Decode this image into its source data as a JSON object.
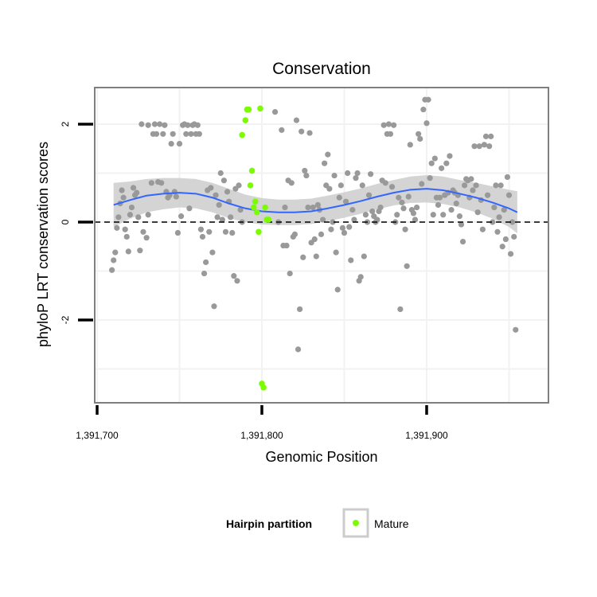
{
  "chart_data": {
    "type": "scatter",
    "title": "Conservation",
    "xlabel": "Genomic Position",
    "ylabel": "phyloP LRT conservation scores",
    "x_ticks": [
      {
        "value": 1391700,
        "label": "1,391,700"
      },
      {
        "value": 1391800,
        "label": "1,391,800"
      },
      {
        "value": 1391900,
        "label": "1,391,900"
      }
    ],
    "y_ticks": [
      {
        "value": -2,
        "label": "-2"
      },
      {
        "value": 0,
        "label": "0"
      },
      {
        "value": 2,
        "label": "2"
      }
    ],
    "xlim": [
      1391700,
      1391970
    ],
    "ylim": [
      -3.7,
      2.7
    ],
    "grid": true,
    "reference_line": {
      "y": 0,
      "style": "dashed",
      "color": "#000000"
    },
    "colors": {
      "background_points": "#999999",
      "mature_points": "#7CFC00",
      "smooth_line": "#3366FF",
      "ribbon": "#CCCCCC",
      "panel_border": "#7F7F7F",
      "grid": "#F2F2F2"
    },
    "legend": {
      "title": "Hairpin partition",
      "position": "bottom",
      "entries": [
        {
          "label": "Mature",
          "color": "#7CFC00"
        }
      ]
    },
    "series": [
      {
        "values": [
          [
            1391709,
            -0.98
          ],
          [
            1391710,
            -0.78
          ],
          [
            1391711,
            -0.62
          ],
          [
            1391712,
            -0.12
          ],
          [
            1391713,
            0.1
          ],
          [
            1391714,
            0.38
          ],
          [
            1391715,
            0.65
          ],
          [
            1391716,
            0.5
          ],
          [
            1391717,
            -0.15
          ],
          [
            1391718,
            -0.3
          ],
          [
            1391719,
            -0.6
          ],
          [
            1391720,
            0.15
          ],
          [
            1391721,
            0.3
          ],
          [
            1391722,
            0.7
          ],
          [
            1391723,
            0.55
          ],
          [
            1391724,
            0.6
          ],
          [
            1391725,
            0.1
          ],
          [
            1391726,
            -0.58
          ],
          [
            1391727,
            2.0
          ],
          [
            1391728,
            -0.2
          ],
          [
            1391730,
            -0.32
          ],
          [
            1391731,
            0.15
          ],
          [
            1391731,
            1.98
          ],
          [
            1391733,
            0.8
          ],
          [
            1391734,
            1.8
          ],
          [
            1391735,
            2.0
          ],
          [
            1391736,
            1.8
          ],
          [
            1391737,
            0.82
          ],
          [
            1391738,
            2.0
          ],
          [
            1391739,
            0.8
          ],
          [
            1391740,
            1.8
          ],
          [
            1391741,
            1.98
          ],
          [
            1391742,
            0.62
          ],
          [
            1391743,
            0.5
          ],
          [
            1391744,
            0.55
          ],
          [
            1391745,
            1.6
          ],
          [
            1391746,
            1.8
          ],
          [
            1391747,
            0.62
          ],
          [
            1391748,
            0.52
          ],
          [
            1391749,
            -0.22
          ],
          [
            1391750,
            1.6
          ],
          [
            1391751,
            0.12
          ],
          [
            1391752,
            1.98
          ],
          [
            1391753,
            2.0
          ],
          [
            1391754,
            1.8
          ],
          [
            1391755,
            1.98
          ],
          [
            1391756,
            0.28
          ],
          [
            1391757,
            1.8
          ],
          [
            1391758,
            1.98
          ],
          [
            1391759,
            2.0
          ],
          [
            1391760,
            1.8
          ],
          [
            1391761,
            1.98
          ],
          [
            1391762,
            1.8
          ],
          [
            1391763,
            -0.15
          ],
          [
            1391764,
            -0.3
          ],
          [
            1391765,
            -1.05
          ],
          [
            1391766,
            -0.82
          ],
          [
            1391767,
            0.65
          ],
          [
            1391768,
            -0.2
          ],
          [
            1391769,
            0.7
          ],
          [
            1391770,
            -0.62
          ],
          [
            1391771,
            -1.72
          ],
          [
            1391772,
            0.55
          ],
          [
            1391773,
            0.1
          ],
          [
            1391774,
            0.35
          ],
          [
            1391775,
            1.0
          ],
          [
            1391776,
            0.05
          ],
          [
            1391777,
            0.85
          ],
          [
            1391778,
            -0.2
          ],
          [
            1391779,
            0.62
          ],
          [
            1391780,
            0.42
          ],
          [
            1391781,
            0.1
          ],
          [
            1391782,
            -0.22
          ],
          [
            1391783,
            -1.1
          ],
          [
            1391784,
            0.68
          ],
          [
            1391785,
            -1.2
          ],
          [
            1391786,
            0.75
          ],
          [
            1391787,
            0.25
          ],
          [
            1391788,
            0.0
          ],
          [
            1391808,
            2.25
          ],
          [
            1391810,
            0.0
          ],
          [
            1391812,
            1.88
          ],
          [
            1391813,
            -0.48
          ],
          [
            1391814,
            0.3
          ],
          [
            1391815,
            -0.48
          ],
          [
            1391816,
            0.85
          ],
          [
            1391817,
            -1.05
          ],
          [
            1391818,
            0.8
          ],
          [
            1391819,
            -0.3
          ],
          [
            1391820,
            -0.25
          ],
          [
            1391821,
            2.08
          ],
          [
            1391822,
            -2.6
          ],
          [
            1391823,
            -1.78
          ],
          [
            1391824,
            1.85
          ],
          [
            1391825,
            -0.72
          ],
          [
            1391826,
            1.05
          ],
          [
            1391827,
            0.95
          ],
          [
            1391828,
            0.3
          ],
          [
            1391829,
            1.82
          ],
          [
            1391830,
            -0.42
          ],
          [
            1391831,
            0.3
          ],
          [
            1391832,
            -0.35
          ],
          [
            1391833,
            -0.7
          ],
          [
            1391834,
            0.35
          ],
          [
            1391835,
            0.25
          ],
          [
            1391836,
            -0.25
          ],
          [
            1391837,
            0.05
          ],
          [
            1391838,
            1.2
          ],
          [
            1391839,
            0.75
          ],
          [
            1391840,
            1.38
          ],
          [
            1391841,
            0.68
          ],
          [
            1391842,
            -0.15
          ],
          [
            1391843,
            0.0
          ],
          [
            1391844,
            0.95
          ],
          [
            1391845,
            -0.62
          ],
          [
            1391846,
            -1.38
          ],
          [
            1391847,
            0.5
          ],
          [
            1391848,
            0.75
          ],
          [
            1391849,
            -0.12
          ],
          [
            1391850,
            -0.22
          ],
          [
            1391851,
            0.42
          ],
          [
            1391852,
            1.0
          ],
          [
            1391853,
            -0.1
          ],
          [
            1391854,
            -0.78
          ],
          [
            1391855,
            0.25
          ],
          [
            1391856,
            0.05
          ],
          [
            1391857,
            0.9
          ],
          [
            1391858,
            1.0
          ],
          [
            1391859,
            -1.2
          ],
          [
            1391860,
            -1.12
          ],
          [
            1391861,
            0.75
          ],
          [
            1391862,
            -0.7
          ],
          [
            1391863,
            0.15
          ],
          [
            1391864,
            0.0
          ],
          [
            1391865,
            0.55
          ],
          [
            1391866,
            0.98
          ],
          [
            1391867,
            0.22
          ],
          [
            1391868,
            0.12
          ],
          [
            1391869,
            0.0
          ],
          [
            1391870,
            0.05
          ],
          [
            1391871,
            0.22
          ],
          [
            1391872,
            0.3
          ],
          [
            1391873,
            0.85
          ],
          [
            1391874,
            1.98
          ],
          [
            1391875,
            0.8
          ],
          [
            1391876,
            1.8
          ],
          [
            1391877,
            2.0
          ],
          [
            1391878,
            1.8
          ],
          [
            1391879,
            0.72
          ],
          [
            1391880,
            1.98
          ],
          [
            1391881,
            0.0
          ],
          [
            1391882,
            0.15
          ],
          [
            1391883,
            0.5
          ],
          [
            1391884,
            -1.78
          ],
          [
            1391885,
            0.4
          ],
          [
            1391886,
            0.28
          ],
          [
            1391887,
            -0.15
          ],
          [
            1391888,
            -0.9
          ],
          [
            1391889,
            0.52
          ],
          [
            1391890,
            1.58
          ],
          [
            1391891,
            0.25
          ],
          [
            1391892,
            0.18
          ],
          [
            1391893,
            0.05
          ],
          [
            1391894,
            0.3
          ],
          [
            1391895,
            1.8
          ],
          [
            1391896,
            1.7
          ],
          [
            1391897,
            0.78
          ],
          [
            1391898,
            2.3
          ],
          [
            1391899,
            2.5
          ],
          [
            1391900,
            2.02
          ],
          [
            1391901,
            2.5
          ],
          [
            1391902,
            0.9
          ],
          [
            1391903,
            1.2
          ],
          [
            1391904,
            0.15
          ],
          [
            1391905,
            1.3
          ],
          [
            1391906,
            0.5
          ],
          [
            1391907,
            0.35
          ],
          [
            1391908,
            0.5
          ],
          [
            1391909,
            1.1
          ],
          [
            1391910,
            0.15
          ],
          [
            1391911,
            0.55
          ],
          [
            1391912,
            1.2
          ],
          [
            1391913,
            0.6
          ],
          [
            1391914,
            1.35
          ],
          [
            1391915,
            0.25
          ],
          [
            1391916,
            0.65
          ],
          [
            1391917,
            0.6
          ],
          [
            1391918,
            0.38
          ],
          [
            1391919,
            0.55
          ],
          [
            1391920,
            0.12
          ],
          [
            1391921,
            -0.05
          ],
          [
            1391922,
            -0.4
          ],
          [
            1391923,
            0.75
          ],
          [
            1391924,
            0.88
          ],
          [
            1391925,
            0.85
          ],
          [
            1391926,
            0.5
          ],
          [
            1391927,
            0.88
          ],
          [
            1391928,
            0.65
          ],
          [
            1391929,
            1.55
          ],
          [
            1391930,
            0.75
          ],
          [
            1391931,
            0.2
          ],
          [
            1391932,
            1.55
          ],
          [
            1391933,
            0.45
          ],
          [
            1391934,
            -0.15
          ],
          [
            1391935,
            1.58
          ],
          [
            1391936,
            1.75
          ],
          [
            1391937,
            0.55
          ],
          [
            1391938,
            1.55
          ],
          [
            1391939,
            1.75
          ],
          [
            1391940,
            0.0
          ],
          [
            1391941,
            0.3
          ],
          [
            1391942,
            0.75
          ],
          [
            1391943,
            -0.2
          ],
          [
            1391944,
            0.1
          ],
          [
            1391945,
            0.75
          ],
          [
            1391946,
            -0.5
          ],
          [
            1391947,
            0.25
          ],
          [
            1391948,
            -0.35
          ],
          [
            1391949,
            0.92
          ],
          [
            1391950,
            0.55
          ],
          [
            1391951,
            -0.65
          ],
          [
            1391952,
            0.0
          ],
          [
            1391953,
            -0.3
          ],
          [
            1391954,
            -2.2
          ]
        ]
      },
      {
        "name": "Mature",
        "values": [
          [
            1391788,
            1.78
          ],
          [
            1391790,
            2.08
          ],
          [
            1391791,
            2.3
          ],
          [
            1391792,
            2.3
          ],
          [
            1391793,
            0.75
          ],
          [
            1391794,
            1.05
          ],
          [
            1391795,
            0.3
          ],
          [
            1391796,
            0.42
          ],
          [
            1391797,
            0.2
          ],
          [
            1391798,
            -0.2
          ],
          [
            1391799,
            2.32
          ],
          [
            1391800,
            -3.3
          ],
          [
            1391801,
            -3.38
          ],
          [
            1391802,
            0.3
          ],
          [
            1391803,
            0.05
          ],
          [
            1391804,
            0.05
          ]
        ]
      }
    ],
    "smooth": {
      "values": [
        [
          1391710,
          0.35
        ],
        [
          1391720,
          0.45
        ],
        [
          1391730,
          0.54
        ],
        [
          1391740,
          0.58
        ],
        [
          1391750,
          0.6
        ],
        [
          1391760,
          0.58
        ],
        [
          1391770,
          0.5
        ],
        [
          1391780,
          0.38
        ],
        [
          1391790,
          0.28
        ],
        [
          1391800,
          0.22
        ],
        [
          1391810,
          0.2
        ],
        [
          1391820,
          0.2
        ],
        [
          1391830,
          0.22
        ],
        [
          1391840,
          0.28
        ],
        [
          1391850,
          0.35
        ],
        [
          1391860,
          0.43
        ],
        [
          1391870,
          0.52
        ],
        [
          1391880,
          0.6
        ],
        [
          1391890,
          0.66
        ],
        [
          1391900,
          0.68
        ],
        [
          1391910,
          0.65
        ],
        [
          1391920,
          0.58
        ],
        [
          1391930,
          0.5
        ],
        [
          1391940,
          0.4
        ],
        [
          1391950,
          0.28
        ],
        [
          1391955,
          0.2
        ]
      ],
      "ribbon_halfwidth": [
        0.45,
        0.38,
        0.34,
        0.32,
        0.3,
        0.3,
        0.3,
        0.3,
        0.28,
        0.27,
        0.26,
        0.26,
        0.26,
        0.26,
        0.26,
        0.26,
        0.26,
        0.26,
        0.27,
        0.28,
        0.28,
        0.28,
        0.3,
        0.33,
        0.38,
        0.43
      ]
    }
  }
}
